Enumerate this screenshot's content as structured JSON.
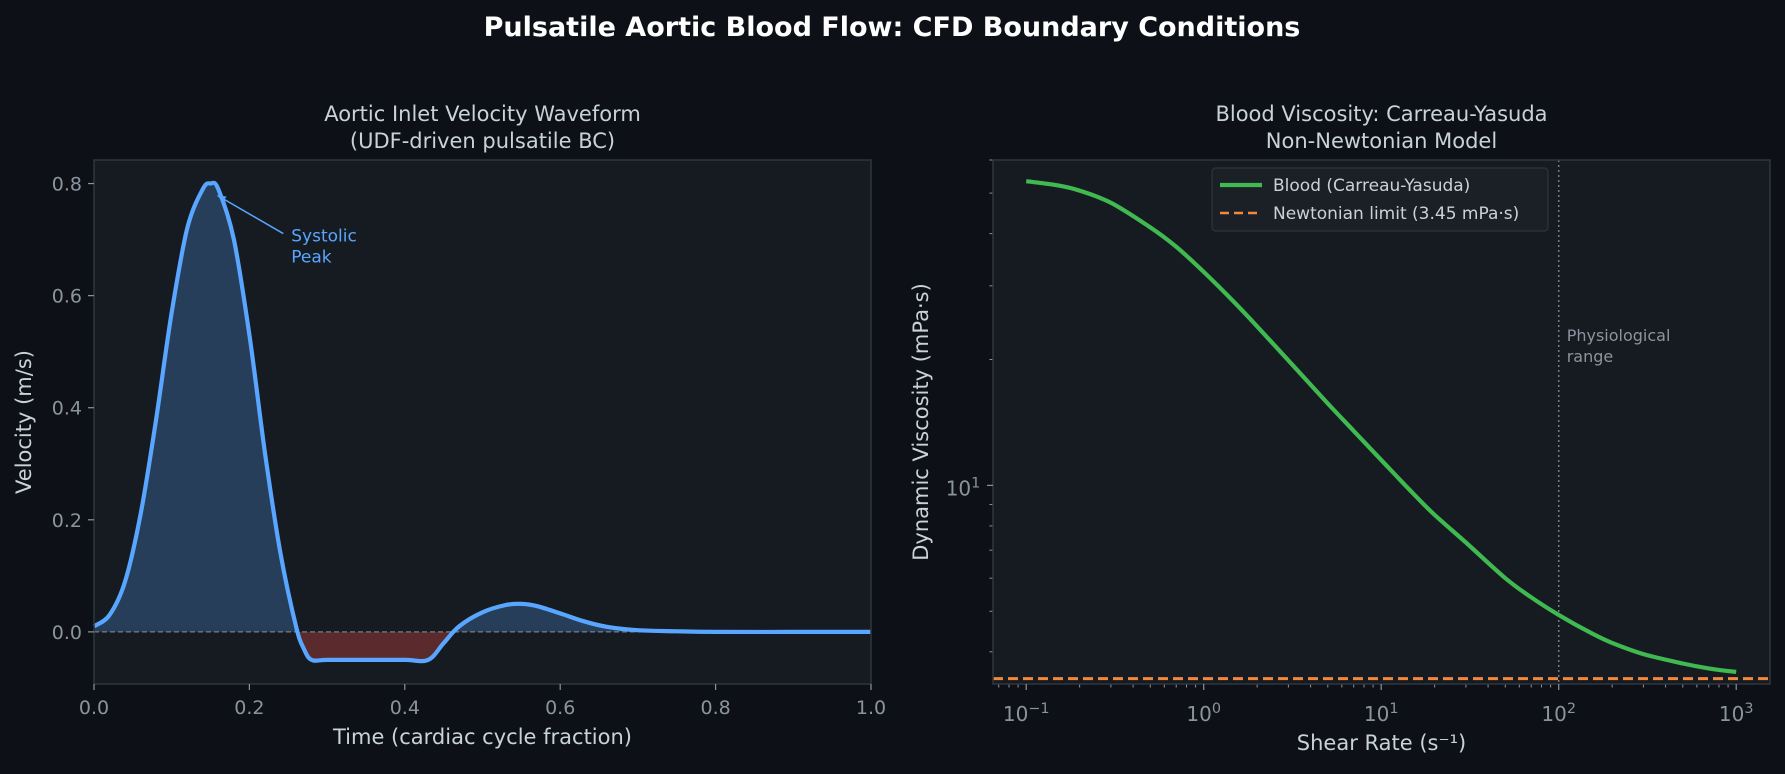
{
  "figure": {
    "suptitle": "Pulsatile Aortic Blood Flow: CFD Boundary Conditions",
    "background": "#0d1117",
    "axes_facecolor": "#161b22",
    "spine_color": "#30363d",
    "text_color": "#c9d1d9",
    "tick_color": "#8b949e"
  },
  "chart_data": [
    {
      "type": "line",
      "title": "Aortic Inlet Velocity Waveform\n(UDF-driven pulsatile BC)",
      "xlabel": "Time (cardiac cycle fraction)",
      "ylabel": "Velocity (m/s)",
      "xlim": [
        0.0,
        1.0
      ],
      "ylim": [
        -0.093,
        0.842
      ],
      "xticks": [
        0.0,
        0.2,
        0.4,
        0.6,
        0.8,
        1.0
      ],
      "xtick_labels": [
        "0.0",
        "0.2",
        "0.4",
        "0.6",
        "0.8",
        "1.0"
      ],
      "yticks": [
        0.0,
        0.2,
        0.4,
        0.6,
        0.8
      ],
      "ytick_labels": [
        "0.0",
        "0.2",
        "0.4",
        "0.6",
        "0.8"
      ],
      "grid": false,
      "series": [
        {
          "color": "#58a6ff",
          "x": [
            0.0,
            0.02,
            0.04,
            0.06,
            0.08,
            0.1,
            0.12,
            0.14,
            0.15,
            0.16,
            0.18,
            0.2,
            0.22,
            0.24,
            0.26,
            0.27,
            0.28,
            0.3,
            0.35,
            0.4,
            0.43,
            0.45,
            0.47,
            0.5,
            0.53,
            0.55,
            0.57,
            0.6,
            0.63,
            0.66,
            0.7,
            0.75,
            0.8,
            0.9,
            1.0
          ],
          "y": [
            0.01,
            0.03,
            0.09,
            0.21,
            0.38,
            0.57,
            0.72,
            0.79,
            0.8,
            0.79,
            0.7,
            0.53,
            0.32,
            0.14,
            0.01,
            -0.03,
            -0.05,
            -0.05,
            -0.05,
            -0.05,
            -0.05,
            -0.02,
            0.01,
            0.035,
            0.048,
            0.05,
            0.046,
            0.033,
            0.019,
            0.009,
            0.003,
            0.001,
            0.0,
            0.0,
            0.0
          ]
        }
      ],
      "positive_fill": "#58a6ff",
      "negative_fill": "#f85149",
      "zero_line": 0.0,
      "annotation": {
        "text": "Systolic\nPeak",
        "point": [
          0.15,
          0.8
        ],
        "text_pos": [
          0.25,
          0.7
        ],
        "color": "#58a6ff"
      }
    },
    {
      "type": "line",
      "title": "Blood Viscosity: Carreau-Yasuda\nNon-Newtonian Model",
      "xlabel": "Shear Rate (s⁻¹)",
      "ylabel": "Dynamic Viscosity (mPa·s)",
      "xscale": "log",
      "yscale": "log",
      "xlim": [
        0.065,
        1550
      ],
      "ylim": [
        3.35,
        60
      ],
      "xticks": [
        0.1,
        1,
        10,
        100,
        1000
      ],
      "xtick_labels": [
        {
          "base": "10",
          "exp": "−1"
        },
        {
          "base": "10",
          "exp": "0"
        },
        {
          "base": "10",
          "exp": "1"
        },
        {
          "base": "10",
          "exp": "2"
        },
        {
          "base": "10",
          "exp": "3"
        }
      ],
      "yticks": [
        10
      ],
      "ytick_labels": [
        {
          "base": "10",
          "exp": "1"
        }
      ],
      "grid": false,
      "series": [
        {
          "name": "Blood (Carreau-Yasuda)",
          "color": "#3fb950",
          "style": "solid",
          "x": [
            0.1,
            0.15,
            0.2,
            0.3,
            0.5,
            0.7,
            1,
            1.5,
            2,
            3,
            5,
            7,
            10,
            15,
            20,
            30,
            50,
            70,
            100,
            150,
            200,
            300,
            500,
            700,
            1000
          ],
          "y": [
            53.4,
            52.2,
            50.7,
            47.4,
            41.4,
            37.2,
            32.4,
            27.3,
            24.0,
            19.9,
            15.7,
            13.5,
            11.5,
            9.6,
            8.5,
            7.3,
            6.0,
            5.4,
            4.9,
            4.45,
            4.2,
            3.95,
            3.75,
            3.65,
            3.58
          ]
        },
        {
          "name": "Newtonian limit (3.45 mPa·s)",
          "color": "#f0883e",
          "style": "dashed",
          "y_const": 3.45
        }
      ],
      "vline": {
        "x": 100,
        "color": "#8b949e",
        "style": "dotted",
        "label": "Physiological\nrange"
      },
      "legend": "upper center"
    }
  ]
}
